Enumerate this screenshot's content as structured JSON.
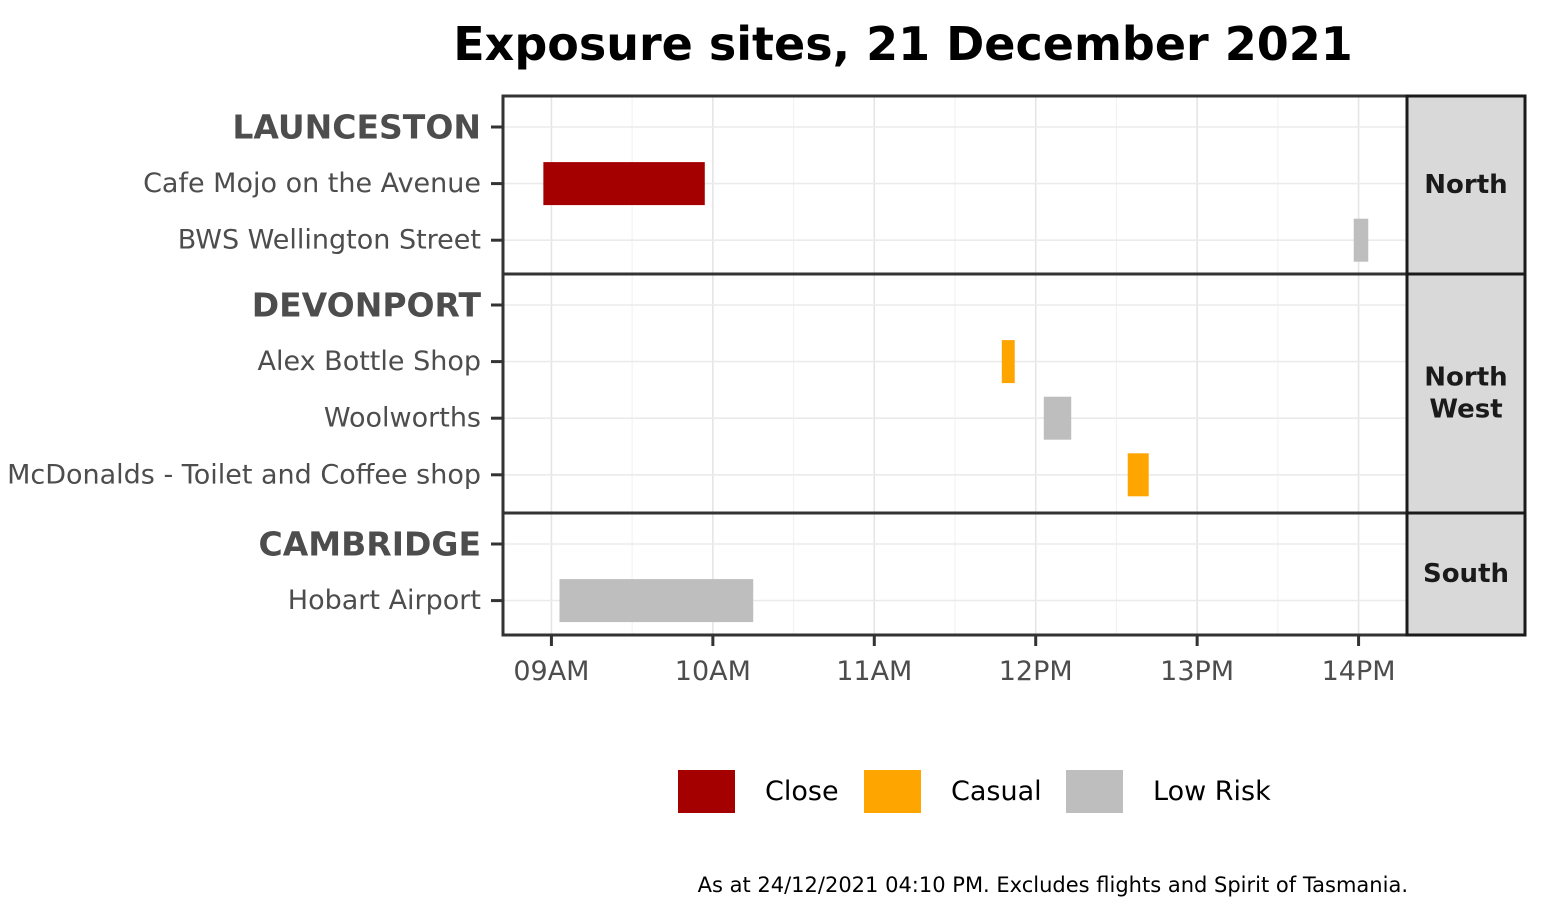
{
  "chart_data": {
    "type": "bar",
    "subtype": "gantt",
    "title": "Exposure sites, 21 December 2021",
    "caption": "As at 24/12/2021 04:10 PM. Excludes flights and Spirit of Tasmania.",
    "x_axis": {
      "unit": "hour",
      "range": [
        8.7,
        14.3
      ],
      "ticks": [
        {
          "value": 9,
          "label": "09AM"
        },
        {
          "value": 10,
          "label": "10AM"
        },
        {
          "value": 11,
          "label": "11AM"
        },
        {
          "value": 12,
          "label": "12PM"
        },
        {
          "value": 13,
          "label": "13PM"
        },
        {
          "value": 14,
          "label": "14PM"
        }
      ]
    },
    "grid": true,
    "legend_position": "bottom",
    "legend": [
      {
        "key": "close",
        "label": "Close",
        "color": "#a50000"
      },
      {
        "key": "casual",
        "label": "Casual",
        "color": "#ffa500"
      },
      {
        "key": "low",
        "label": "Low Risk",
        "color": "#bebebe"
      }
    ],
    "panels": [
      {
        "region": "North",
        "rows": [
          {
            "label": "LAUNCESTON",
            "kind": "town"
          },
          {
            "label": "Cafe Mojo on the Avenue",
            "kind": "site",
            "start": 8.95,
            "end": 9.95,
            "risk": "close"
          },
          {
            "label": "BWS Wellington Street",
            "kind": "site",
            "start": 13.97,
            "end": 14.06,
            "risk": "low"
          }
        ]
      },
      {
        "region": "North West",
        "rows": [
          {
            "label": "DEVONPORT",
            "kind": "town"
          },
          {
            "label": "Alex Bottle Shop",
            "kind": "site",
            "start": 11.79,
            "end": 11.87,
            "risk": "casual"
          },
          {
            "label": "Woolworths",
            "kind": "site",
            "start": 12.05,
            "end": 12.22,
            "risk": "low"
          },
          {
            "label": "McDonalds - Toilet and Coffee shop",
            "kind": "site",
            "start": 12.57,
            "end": 12.7,
            "risk": "casual"
          }
        ]
      },
      {
        "region": "South",
        "rows": [
          {
            "label": "CAMBRIDGE",
            "kind": "town"
          },
          {
            "label": "Hobart Airport",
            "kind": "site",
            "start": 9.05,
            "end": 10.25,
            "risk": "low"
          }
        ]
      }
    ]
  }
}
